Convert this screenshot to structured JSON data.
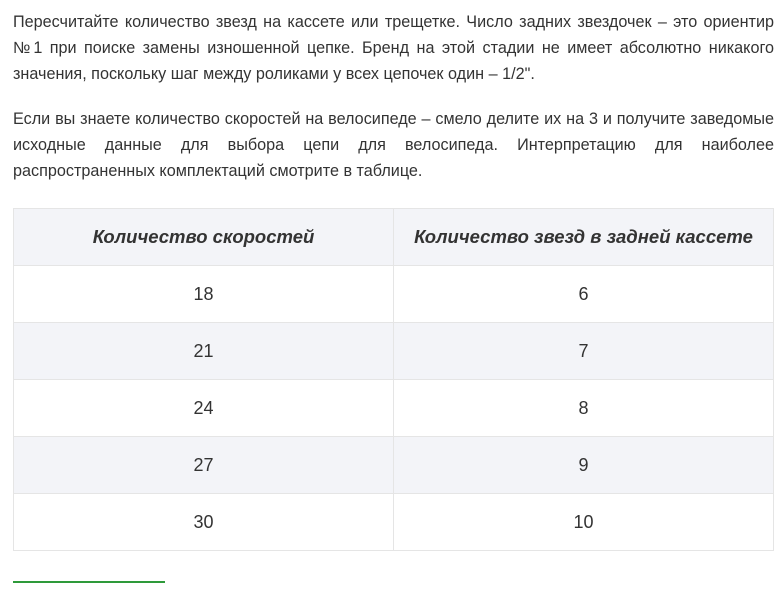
{
  "paragraphs": [
    "Пересчитайте количество звезд на кассете или трещетке. Число задних звездочек – это ориентир №1 при поиске замены изношенной цепке. Бренд на этой стадии не имеет абсолютно никакого значения, поскольку шаг между роликами у всех цепочек один – 1/2\".",
    "Если вы знаете количество скоростей на велосипеде – смело делите их на 3 и получите заведомые исходные данные для выбора цепи для велосипеда. Интерпретацию для наиболее распространенных комплектаций смотрите в таблице."
  ],
  "table": {
    "headers": [
      "Количество скоростей",
      "Количество звезд в задней кассете"
    ],
    "rows": [
      [
        "18",
        "6"
      ],
      [
        "21",
        "7"
      ],
      [
        "24",
        "8"
      ],
      [
        "27",
        "9"
      ],
      [
        "30",
        "10"
      ]
    ]
  },
  "colors": {
    "text": "#333333",
    "header_bg": "#f3f4f8",
    "stripe_bg": "#f3f4f8",
    "border": "#e5e5e5",
    "accent_line": "#2e9a3a"
  }
}
